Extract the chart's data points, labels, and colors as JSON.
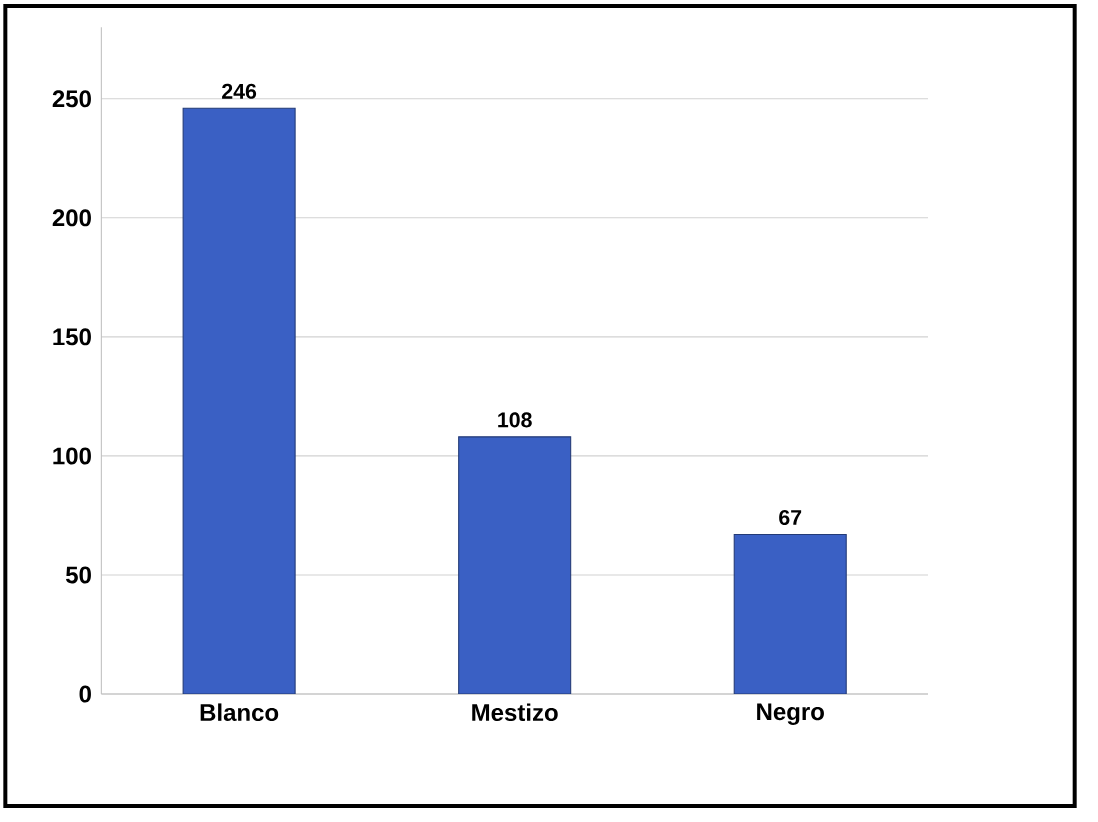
{
  "chart_data": {
    "type": "bar",
    "categories": [
      "Blanco",
      "Mestizo",
      "Negro"
    ],
    "values": [
      246,
      108,
      67
    ],
    "color": "#3a60c4",
    "ylim": [
      0,
      280
    ],
    "yticks": [
      0,
      50,
      100,
      150,
      200,
      250
    ],
    "grid": "y",
    "data_labels": true
  }
}
